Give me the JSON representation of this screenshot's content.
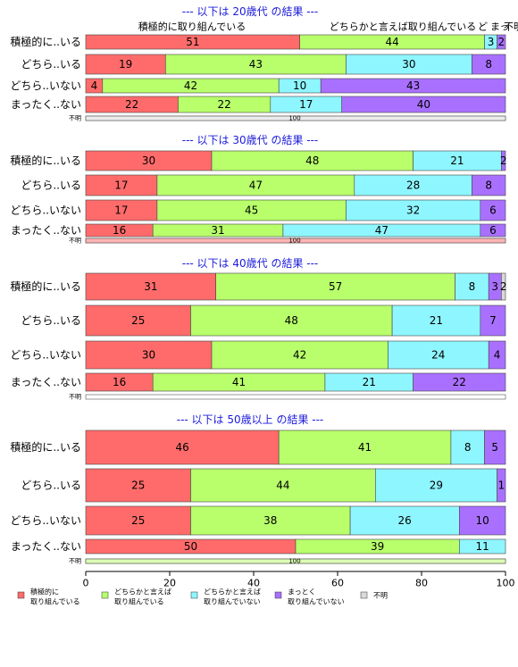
{
  "chart_data": {
    "type": "bar",
    "orientation": "horizontal-stacked",
    "xlim": [
      0,
      100
    ],
    "x_ticks": [
      "0",
      "20",
      "40",
      "60",
      "80",
      "100"
    ],
    "top_labels": [
      "積極的に取り組んでいる",
      "どちらかと言えば取り組んでいる",
      "ど",
      "まっ",
      "不明"
    ],
    "legend": {
      "placement": "bottom",
      "entries": [
        {
          "lines": [
            "積極的に",
            "取り組んでいる"
          ],
          "color": "#ff6b6b"
        },
        {
          "lines": [
            "どちらかと言えば",
            "取り組んでいる"
          ],
          "color": "#b8ff6b"
        },
        {
          "lines": [
            "どちらかと言えば",
            "取り組んでいない"
          ],
          "color": "#8ef6ff"
        },
        {
          "lines": [
            "まっとく",
            "取り組んでいない"
          ],
          "color": "#a970ff"
        },
        {
          "lines": [
            "不明"
          ],
          "color": "#d9d9d9"
        }
      ]
    },
    "colors": [
      "#ff6b6b",
      "#b8ff6b",
      "#8ef6ff",
      "#a970ff",
      "#d9d9d9"
    ],
    "panels": [
      {
        "title": "--- 以下は 20歳代 の結果 ---",
        "rows": [
          {
            "label": "積極的に..いる",
            "values": [
              51,
              44,
              3,
              2,
              0
            ]
          },
          {
            "label": "どちら..いる",
            "values": [
              19,
              43,
              30,
              8,
              0
            ]
          },
          {
            "label": "どちら..いない",
            "values": [
              4,
              42,
              10,
              43,
              0
            ]
          },
          {
            "label": "まったく..ない",
            "values": [
              22,
              22,
              17,
              40,
              0
            ]
          },
          {
            "label": "不明",
            "values": [
              0,
              0,
              0,
              0,
              100
            ],
            "small": true,
            "text": "100"
          }
        ]
      },
      {
        "title": "--- 以下は 30歳代 の結果 ---",
        "rows": [
          {
            "label": "積極的に..いる",
            "values": [
              30,
              48,
              21,
              2,
              0
            ]
          },
          {
            "label": "どちら..いる",
            "values": [
              17,
              47,
              28,
              8,
              0
            ]
          },
          {
            "label": "どちら..いない",
            "values": [
              17,
              45,
              32,
              6,
              0
            ]
          },
          {
            "label": "まったく..ない",
            "values": [
              16,
              31,
              47,
              6,
              0
            ]
          },
          {
            "label": "不明",
            "values": [
              100,
              0,
              0,
              0,
              0
            ],
            "small": true,
            "text": "100"
          }
        ]
      },
      {
        "title": "--- 以下は 40歳代 の結果 ---",
        "rows": [
          {
            "label": "積極的に..いる",
            "values": [
              31,
              57,
              8,
              3,
              2
            ]
          },
          {
            "label": "どちら..いる",
            "values": [
              25,
              48,
              21,
              7,
              0
            ]
          },
          {
            "label": "どちら..いない",
            "values": [
              30,
              42,
              24,
              4,
              0
            ]
          },
          {
            "label": "まったく..ない",
            "values": [
              16,
              41,
              21,
              22,
              0
            ]
          },
          {
            "label": "不明",
            "values": [
              0,
              0,
              0,
              0,
              0
            ],
            "small": true,
            "text": ""
          }
        ]
      },
      {
        "title": "--- 以下は 50歳以上 の結果 ---",
        "rows": [
          {
            "label": "積極的に..いる",
            "values": [
              46,
              41,
              8,
              5,
              0
            ]
          },
          {
            "label": "どちら..いる",
            "values": [
              25,
              44,
              29,
              1,
              0
            ]
          },
          {
            "label": "どちら..いない",
            "values": [
              25,
              38,
              26,
              10,
              0
            ]
          },
          {
            "label": "まったく..ない",
            "values": [
              50,
              39,
              11,
              0,
              0
            ]
          },
          {
            "label": "不明",
            "values": [
              0,
              100,
              0,
              0,
              0
            ],
            "small": true,
            "text": "100"
          }
        ]
      }
    ]
  }
}
